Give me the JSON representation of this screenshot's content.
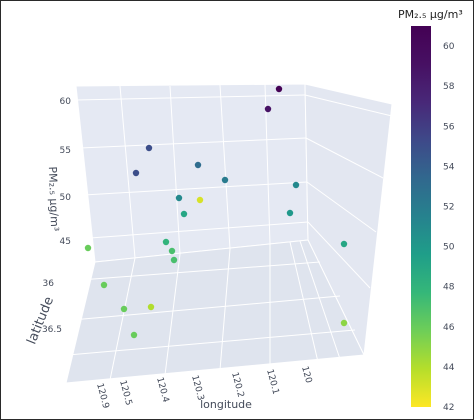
{
  "chart_data": {
    "type": "scatter",
    "subtype": "scatter3d",
    "colorscale": "viridis_r",
    "colorbar": {
      "title": "PM₂.₅ µg/m³",
      "range": [
        42,
        61
      ],
      "ticks": [
        "42",
        "44",
        "46",
        "48",
        "50",
        "52",
        "54",
        "56",
        "58",
        "60"
      ]
    },
    "axes": {
      "x": {
        "title": "longitude",
        "ticks": [
          "120.9",
          "120.5",
          "120.4",
          "120.3",
          "120.2",
          "120.1",
          "120"
        ]
      },
      "y": {
        "title": "latitude",
        "ticks": [
          "36",
          "36.5"
        ]
      },
      "z": {
        "title": "PM₂.₅ µg/m³",
        "ticks": [
          "60",
          "55",
          "50",
          "45"
        ]
      }
    },
    "points": [
      {
        "pm25": 61
      },
      {
        "pm25": 59
      },
      {
        "pm25": 55
      },
      {
        "pm25": 55
      },
      {
        "pm25": 53
      },
      {
        "pm25": 52
      },
      {
        "pm25": 51
      },
      {
        "pm25": 51
      },
      {
        "pm25": 50
      },
      {
        "pm25": 49
      },
      {
        "pm25": 49
      },
      {
        "pm25": 48
      },
      {
        "pm25": 47
      },
      {
        "pm25": 47
      },
      {
        "pm25": 46
      },
      {
        "pm25": 46
      },
      {
        "pm25": 46
      },
      {
        "pm25": 46
      },
      {
        "pm25": 45
      },
      {
        "pm25": 44
      },
      {
        "pm25": 43
      }
    ]
  }
}
